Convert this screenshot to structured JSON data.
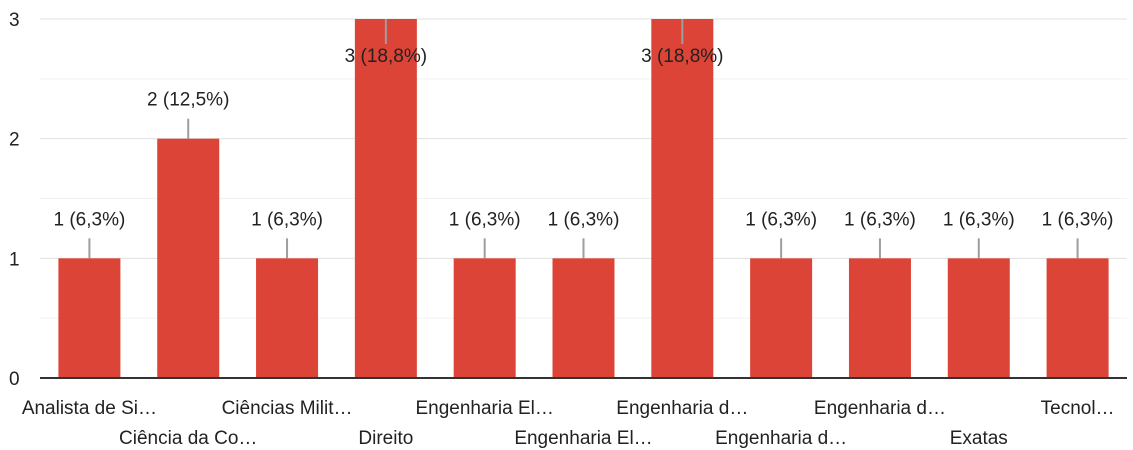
{
  "chart_data": {
    "type": "bar",
    "categories": [
      "Analista de Si…",
      "Ciência da Co…",
      "Ciências Milit…",
      "Direito",
      "Engenharia El…",
      "Engenharia El…",
      "Engenharia d…",
      "Engenharia d…",
      "Engenharia d…",
      "Exatas",
      "Tecnol…"
    ],
    "values": [
      1,
      2,
      1,
      3,
      1,
      1,
      3,
      1,
      1,
      1,
      1
    ],
    "data_labels": [
      "1 (6,3%)",
      "2 (12,5%)",
      "1 (6,3%)",
      "3 (18,8%)",
      "1 (6,3%)",
      "1 (6,3%)",
      "3 (18,8%)",
      "1 (6,3%)",
      "1 (6,3%)",
      "1 (6,3%)",
      "1 (6,3%)"
    ],
    "yticks": [
      "0",
      "1",
      "2",
      "3"
    ],
    "ylim": [
      0,
      3
    ],
    "grid": true,
    "legend": "none",
    "bar_color": "#db4437"
  }
}
